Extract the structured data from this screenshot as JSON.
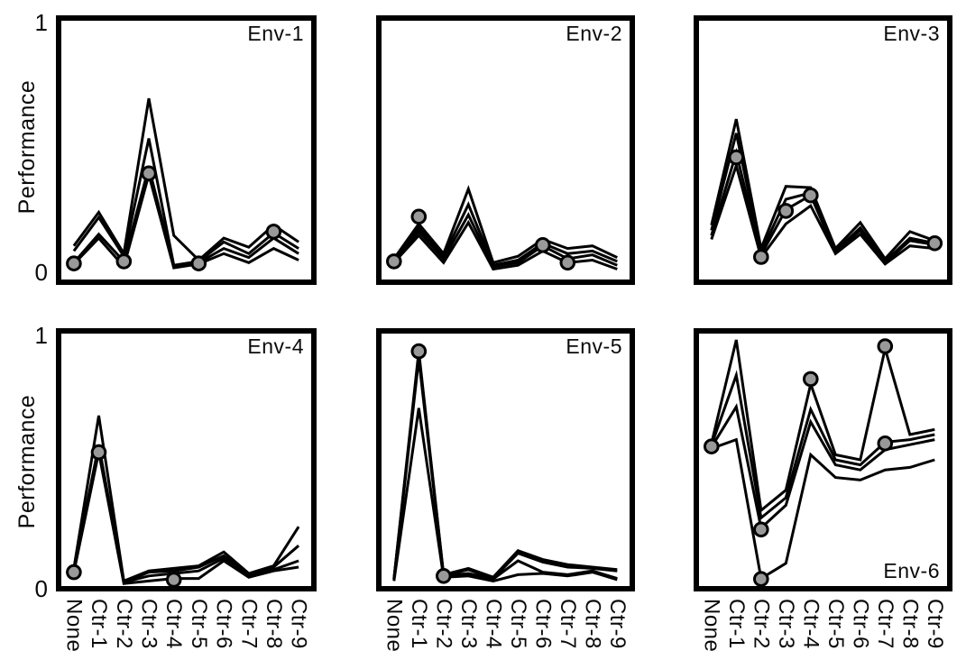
{
  "figure": {
    "ylabel": "Performance",
    "ytick_top": "1",
    "ytick_bottom": "0",
    "categories": [
      "None",
      "Ctr-1",
      "Ctr-2",
      "Ctr-3",
      "Ctr-4",
      "Ctr-5",
      "Ctr-6",
      "Ctr-7",
      "Ctr-8",
      "Ctr-9"
    ]
  },
  "style": {
    "line_color": "#000000",
    "marker_fill": "#999999",
    "marker_edge": "#000000",
    "background": "#ffffff"
  },
  "chart_data": [
    {
      "type": "line",
      "title": "Env-1",
      "title_pos": "top-right",
      "xlabel": "",
      "ylabel": "Performance",
      "ylim": [
        0,
        1
      ],
      "grid": false,
      "legend": "none",
      "categories": [
        "None",
        "Ctr-1",
        "Ctr-2",
        "Ctr-3",
        "Ctr-4",
        "Ctr-5",
        "Ctr-6",
        "Ctr-7",
        "Ctr-8",
        "Ctr-9"
      ],
      "series": [
        {
          "name": "line-1",
          "values": [
            0.13,
            0.26,
            0.1,
            0.7,
            0.17,
            0.075,
            0.16,
            0.125,
            0.21,
            0.145
          ]
        },
        {
          "name": "line-2",
          "values": [
            0.11,
            0.24,
            0.09,
            0.545,
            0.055,
            0.07,
            0.145,
            0.1,
            0.18,
            0.12
          ]
        },
        {
          "name": "line-3",
          "values": [
            0.065,
            0.175,
            0.07,
            0.435,
            0.05,
            0.065,
            0.12,
            0.085,
            0.16,
            0.1
          ]
        },
        {
          "name": "line-4",
          "values": [
            0.06,
            0.16,
            0.05,
            0.405,
            0.045,
            0.06,
            0.1,
            0.065,
            0.12,
            0.075
          ]
        }
      ],
      "markers": [
        {
          "x": "None",
          "y": 0.062
        },
        {
          "x": "Ctr-2",
          "y": 0.07
        },
        {
          "x": "Ctr-3",
          "y": 0.41
        },
        {
          "x": "Ctr-5",
          "y": 0.062
        },
        {
          "x": "Ctr-8",
          "y": 0.185
        }
      ]
    },
    {
      "type": "line",
      "title": "Env-2",
      "title_pos": "top-right",
      "xlabel": "",
      "ylabel": "Performance",
      "ylim": [
        0,
        1
      ],
      "grid": false,
      "legend": "none",
      "categories": [
        "None",
        "Ctr-1",
        "Ctr-2",
        "Ctr-3",
        "Ctr-4",
        "Ctr-5",
        "Ctr-6",
        "Ctr-7",
        "Ctr-8",
        "Ctr-9"
      ],
      "series": [
        {
          "name": "line-1",
          "values": [
            0.08,
            0.215,
            0.1,
            0.35,
            0.065,
            0.09,
            0.155,
            0.12,
            0.13,
            0.085
          ]
        },
        {
          "name": "line-2",
          "values": [
            0.075,
            0.2,
            0.09,
            0.29,
            0.055,
            0.075,
            0.14,
            0.1,
            0.11,
            0.07
          ]
        },
        {
          "name": "line-3",
          "values": [
            0.07,
            0.185,
            0.08,
            0.25,
            0.05,
            0.065,
            0.13,
            0.08,
            0.095,
            0.055
          ]
        },
        {
          "name": "line-4",
          "values": [
            0.065,
            0.17,
            0.065,
            0.22,
            0.04,
            0.055,
            0.11,
            0.065,
            0.075,
            0.04
          ]
        }
      ],
      "markers": [
        {
          "x": "None",
          "y": 0.07
        },
        {
          "x": "Ctr-1",
          "y": 0.243
        },
        {
          "x": "Ctr-6",
          "y": 0.133
        },
        {
          "x": "Ctr-7",
          "y": 0.065
        }
      ]
    },
    {
      "type": "line",
      "title": "Env-3",
      "title_pos": "top-right",
      "xlabel": "",
      "ylabel": "Performance",
      "ylim": [
        0,
        1
      ],
      "grid": false,
      "legend": "none",
      "categories": [
        "None",
        "Ctr-1",
        "Ctr-2",
        "Ctr-3",
        "Ctr-4",
        "Ctr-5",
        "Ctr-6",
        "Ctr-7",
        "Ctr-8",
        "Ctr-9"
      ],
      "series": [
        {
          "name": "line-1",
          "values": [
            0.21,
            0.62,
            0.12,
            0.36,
            0.355,
            0.12,
            0.22,
            0.08,
            0.185,
            0.15
          ]
        },
        {
          "name": "line-2",
          "values": [
            0.19,
            0.565,
            0.105,
            0.31,
            0.335,
            0.11,
            0.2,
            0.07,
            0.16,
            0.14
          ]
        },
        {
          "name": "line-3",
          "values": [
            0.17,
            0.49,
            0.095,
            0.27,
            0.325,
            0.105,
            0.19,
            0.065,
            0.15,
            0.135
          ]
        },
        {
          "name": "line-4",
          "values": [
            0.155,
            0.44,
            0.085,
            0.215,
            0.285,
            0.1,
            0.175,
            0.06,
            0.13,
            0.12
          ]
        }
      ],
      "markers": [
        {
          "x": "Ctr-1",
          "y": 0.472
        },
        {
          "x": "Ctr-2",
          "y": 0.087
        },
        {
          "x": "Ctr-3",
          "y": 0.265
        },
        {
          "x": "Ctr-4",
          "y": 0.325
        },
        {
          "x": "Ctr-9",
          "y": 0.14
        }
      ]
    },
    {
      "type": "line",
      "title": "Env-4",
      "title_pos": "top-right",
      "xlabel": "",
      "ylabel": "Performance",
      "ylim": [
        0,
        1
      ],
      "grid": false,
      "legend": "none",
      "categories": [
        "None",
        "Ctr-1",
        "Ctr-2",
        "Ctr-3",
        "Ctr-4",
        "Ctr-5",
        "Ctr-6",
        "Ctr-7",
        "Ctr-8",
        "Ctr-9"
      ],
      "series": [
        {
          "name": "line-1",
          "values": [
            0.07,
            0.675,
            0.02,
            0.06,
            0.07,
            0.08,
            0.135,
            0.05,
            0.08,
            0.235
          ]
        },
        {
          "name": "line-2",
          "values": [
            0.065,
            0.56,
            0.015,
            0.055,
            0.06,
            0.075,
            0.12,
            0.045,
            0.075,
            0.16
          ]
        },
        {
          "name": "line-3",
          "values": [
            0.06,
            0.55,
            0.015,
            0.04,
            0.05,
            0.06,
            0.11,
            0.04,
            0.065,
            0.1
          ]
        },
        {
          "name": "line-4",
          "values": [
            0.055,
            0.53,
            0.01,
            0.02,
            0.03,
            0.03,
            0.1,
            0.035,
            0.06,
            0.075
          ]
        }
      ],
      "markers": [
        {
          "x": "None",
          "y": 0.055
        },
        {
          "x": "Ctr-1",
          "y": 0.53
        },
        {
          "x": "Ctr-4",
          "y": 0.025
        }
      ]
    },
    {
      "type": "line",
      "title": "Env-5",
      "title_pos": "top-right",
      "xlabel": "",
      "ylabel": "Performance",
      "ylim": [
        0,
        1
      ],
      "grid": false,
      "legend": "none",
      "categories": [
        "None",
        "Ctr-1",
        "Ctr-2",
        "Ctr-3",
        "Ctr-4",
        "Ctr-5",
        "Ctr-6",
        "Ctr-7",
        "Ctr-8",
        "Ctr-9"
      ],
      "series": [
        {
          "name": "line-1",
          "values": [
            0.03,
            0.93,
            0.045,
            0.07,
            0.035,
            0.14,
            0.105,
            0.085,
            0.075,
            0.065
          ]
        },
        {
          "name": "line-2",
          "values": [
            0.028,
            0.915,
            0.042,
            0.065,
            0.03,
            0.13,
            0.095,
            0.075,
            0.07,
            0.06
          ]
        },
        {
          "name": "line-3",
          "values": [
            0.025,
            0.9,
            0.04,
            0.05,
            0.028,
            0.1,
            0.055,
            0.045,
            0.06,
            0.03
          ]
        },
        {
          "name": "line-4",
          "values": [
            0.02,
            0.705,
            0.035,
            0.04,
            0.02,
            0.045,
            0.05,
            0.04,
            0.055,
            0.025
          ]
        }
      ],
      "markers": [
        {
          "x": "Ctr-1",
          "y": 0.93
        },
        {
          "x": "Ctr-2",
          "y": 0.04
        }
      ]
    },
    {
      "type": "line",
      "title": "Env-6",
      "title_pos": "bottom-right",
      "xlabel": "",
      "ylabel": "Performance",
      "ylim": [
        0,
        1
      ],
      "grid": false,
      "legend": "none",
      "categories": [
        "None",
        "Ctr-1",
        "Ctr-2",
        "Ctr-3",
        "Ctr-4",
        "Ctr-5",
        "Ctr-6",
        "Ctr-7",
        "Ctr-8",
        "Ctr-9"
      ],
      "series": [
        {
          "name": "line-1",
          "values": [
            0.565,
            0.975,
            0.3,
            0.38,
            0.8,
            0.52,
            0.5,
            0.94,
            0.6,
            0.62
          ]
        },
        {
          "name": "line-2",
          "values": [
            0.558,
            0.835,
            0.27,
            0.35,
            0.7,
            0.5,
            0.48,
            0.57,
            0.58,
            0.6
          ]
        },
        {
          "name": "line-3",
          "values": [
            0.55,
            0.71,
            0.23,
            0.32,
            0.65,
            0.48,
            0.46,
            0.54,
            0.56,
            0.58
          ]
        },
        {
          "name": "line-4",
          "values": [
            0.545,
            0.58,
            0.03,
            0.09,
            0.52,
            0.43,
            0.42,
            0.46,
            0.47,
            0.5
          ]
        }
      ],
      "markers": [
        {
          "x": "None",
          "y": 0.553
        },
        {
          "x": "Ctr-2",
          "y": 0.224
        },
        {
          "x": "Ctr-2",
          "y": 0.028
        },
        {
          "x": "Ctr-4",
          "y": 0.82
        },
        {
          "x": "Ctr-7",
          "y": 0.95
        },
        {
          "x": "Ctr-7",
          "y": 0.565
        }
      ]
    }
  ]
}
